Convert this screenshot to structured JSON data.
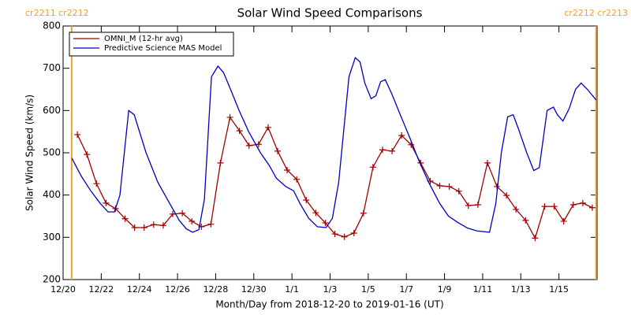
{
  "chart_data": {
    "type": "line",
    "title": "Solar Wind Speed Comparisons",
    "xlabel": "Month/Day from 2018-12-20 to 2019-01-16 (UT)",
    "ylabel": "Solar Wind Speed (km/s)",
    "xlim": [
      0,
      28
    ],
    "ylim": [
      200,
      800
    ],
    "yticks": [
      200,
      300,
      400,
      500,
      600,
      700,
      800
    ],
    "xticks": [
      {
        "value": 0,
        "label": "12/20"
      },
      {
        "value": 2,
        "label": "12/22"
      },
      {
        "value": 4,
        "label": "12/24"
      },
      {
        "value": 6,
        "label": "12/26"
      },
      {
        "value": 8,
        "label": "12/28"
      },
      {
        "value": 10,
        "label": "12/30"
      },
      {
        "value": 12,
        "label": "1/1"
      },
      {
        "value": 14,
        "label": "1/3"
      },
      {
        "value": 16,
        "label": "1/5"
      },
      {
        "value": 18,
        "label": "1/7"
      },
      {
        "value": 20,
        "label": "1/9"
      },
      {
        "value": 22,
        "label": "1/11"
      },
      {
        "value": 24,
        "label": "1/13"
      },
      {
        "value": 26,
        "label": "1/15"
      }
    ],
    "cr_markers": [
      {
        "x": 0.45,
        "label": "cr2211 cr2212",
        "color": "#f0a030"
      },
      {
        "x": 27.95,
        "label": "cr2212 cr2213",
        "color": "#f0a030"
      }
    ],
    "legend": "upper left",
    "series": [
      {
        "name": "OMNI_M (12-hr avg)",
        "color": "#a00000",
        "marker": "+",
        "x": [
          0.75,
          1.25,
          1.75,
          2.25,
          2.75,
          3.25,
          3.75,
          4.25,
          4.75,
          5.25,
          5.75,
          6.25,
          6.75,
          7.25,
          7.75,
          8.25,
          8.75,
          9.25,
          9.75,
          10.25,
          10.75,
          11.25,
          11.75,
          12.25,
          12.75,
          13.25,
          13.75,
          14.25,
          14.75,
          15.25,
          15.75,
          16.25,
          16.75,
          17.25,
          17.75,
          18.25,
          18.75,
          19.25,
          19.75,
          20.25,
          20.75,
          21.25,
          21.75,
          22.25,
          22.75,
          23.25,
          23.75,
          24.25,
          24.75,
          25.25,
          25.75,
          26.25,
          26.75,
          27.25,
          27.75
        ],
        "values": [
          543,
          496,
          427,
          381,
          368,
          344,
          323,
          323,
          330,
          328,
          355,
          357,
          338,
          325,
          331,
          476,
          584,
          552,
          517,
          520,
          560,
          504,
          459,
          437,
          388,
          358,
          334,
          308,
          301,
          310,
          357,
          466,
          507,
          504,
          541,
          519,
          476,
          433,
          422,
          420,
          409,
          375,
          377,
          476,
          420,
          399,
          366,
          340,
          298,
          373,
          373,
          338,
          377,
          381,
          370
        ]
      },
      {
        "name": "Predictive Science MAS Model",
        "color": "#0000c0",
        "x": [
          0.46,
          0.95,
          1.45,
          1.95,
          2.36,
          2.69,
          2.98,
          3.44,
          3.73,
          4.35,
          4.97,
          5.59,
          6.09,
          6.46,
          6.79,
          7.12,
          7.41,
          7.78,
          8.12,
          8.41,
          8.78,
          9.23,
          9.73,
          10.35,
          10.81,
          11.18,
          11.68,
          12.09,
          12.42,
          12.88,
          13.33,
          13.79,
          14.12,
          14.45,
          14.99,
          15.32,
          15.57,
          15.82,
          16.15,
          16.4,
          16.65,
          16.89,
          17.23,
          17.68,
          18.14,
          18.67,
          19.17,
          19.75,
          20.21,
          20.7,
          21.2,
          21.7,
          22.36,
          22.69,
          22.98,
          23.31,
          23.6,
          23.89,
          24.31,
          24.68,
          24.97,
          25.38,
          25.71,
          25.92,
          26.21,
          26.54,
          26.87,
          27.16,
          27.49,
          27.95
        ],
        "values": [
          487,
          445,
          410,
          380,
          360,
          360,
          400,
          600,
          590,
          500,
          430,
          380,
          340,
          320,
          312,
          318,
          390,
          680,
          705,
          690,
          650,
          600,
          550,
          500,
          470,
          440,
          420,
          410,
          380,
          345,
          325,
          323,
          345,
          430,
          680,
          725,
          715,
          665,
          628,
          635,
          668,
          673,
          640,
          590,
          540,
          480,
          430,
          380,
          350,
          335,
          322,
          315,
          312,
          380,
          500,
          585,
          590,
          555,
          500,
          458,
          465,
          600,
          608,
          590,
          575,
          605,
          650,
          665,
          650,
          625
        ]
      }
    ]
  }
}
